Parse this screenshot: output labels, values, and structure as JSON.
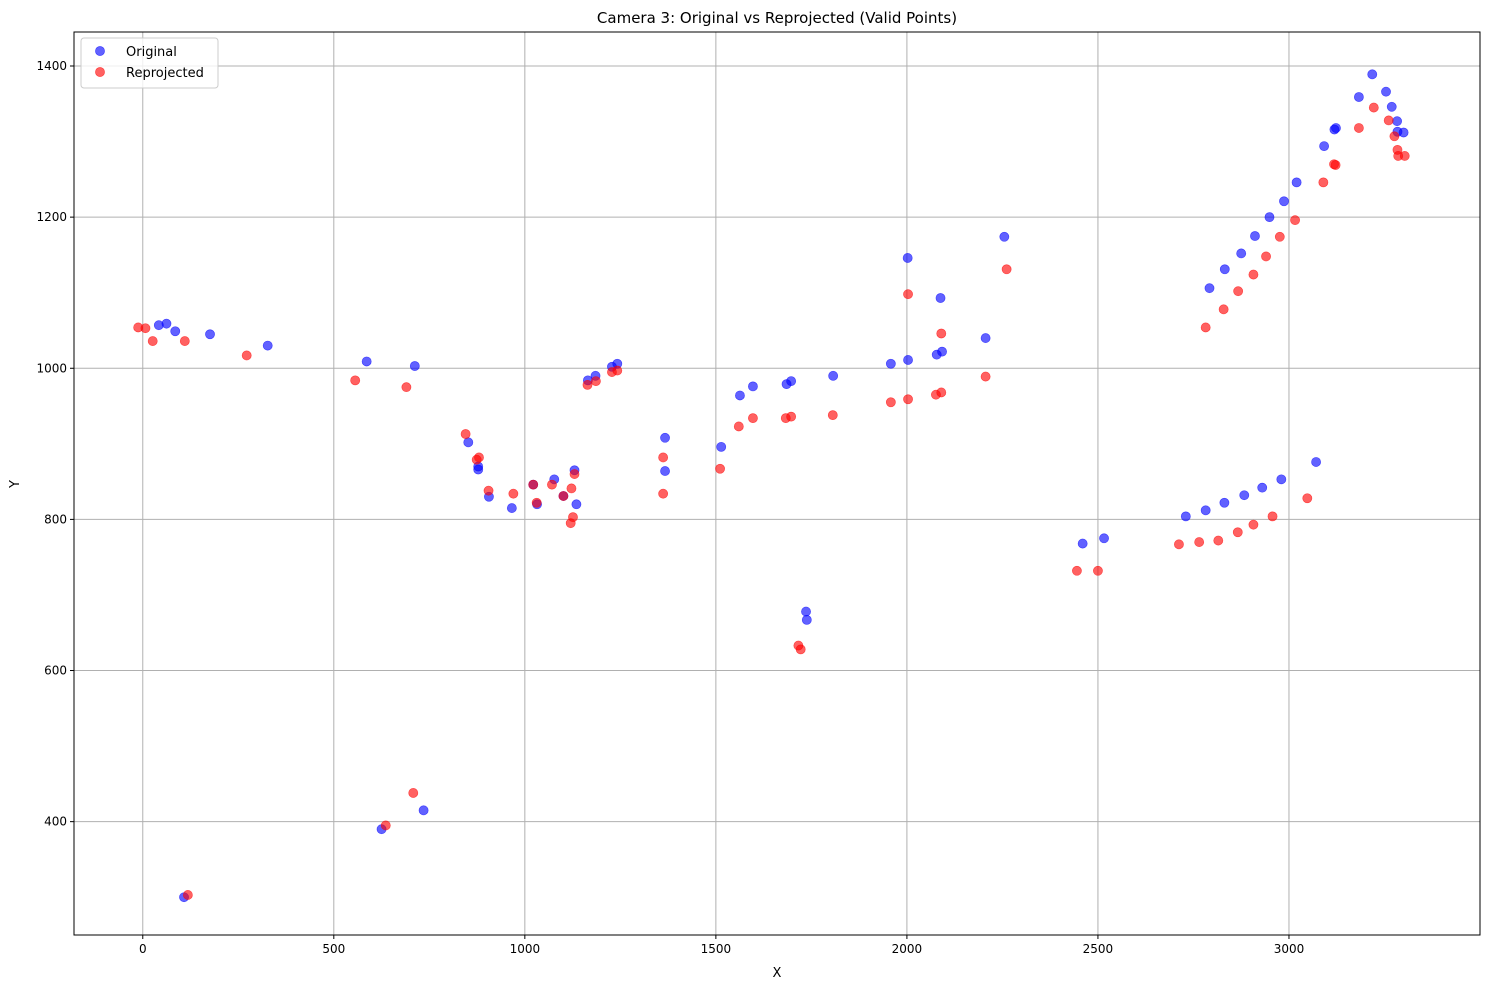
{
  "chart_data": {
    "type": "scatter",
    "title": "Camera 3: Original vs Reprojected (Valid Points)",
    "xlabel": "X",
    "ylabel": "Y",
    "xlim": [
      -180,
      3500
    ],
    "ylim": [
      250,
      1445
    ],
    "xticks": [
      0,
      500,
      1000,
      1500,
      2000,
      2500,
      3000
    ],
    "yticks": [
      400,
      600,
      800,
      1000,
      1200,
      1400
    ],
    "grid": true,
    "legend_position": "top-left",
    "series": [
      {
        "name": "Original",
        "color": "#0000ff",
        "points": [
          [
            42,
            1057
          ],
          [
            62,
            1059
          ],
          [
            85,
            1049
          ],
          [
            176,
            1045
          ],
          [
            327,
            1030
          ],
          [
            586,
            1009
          ],
          [
            712,
            1003
          ],
          [
            852,
            902
          ],
          [
            878,
            870
          ],
          [
            878,
            866
          ],
          [
            906,
            830
          ],
          [
            966,
            815
          ],
          [
            1022,
            846
          ],
          [
            1032,
            820
          ],
          [
            1077,
            853
          ],
          [
            1101,
            831
          ],
          [
            1130,
            865
          ],
          [
            1135,
            820
          ],
          [
            1165,
            984
          ],
          [
            1185,
            990
          ],
          [
            1228,
            1002
          ],
          [
            1242,
            1006
          ],
          [
            1367,
            908
          ],
          [
            1367,
            864
          ],
          [
            1514,
            896
          ],
          [
            1563,
            964
          ],
          [
            1597,
            976
          ],
          [
            1685,
            979
          ],
          [
            1697,
            983
          ],
          [
            1807,
            990
          ],
          [
            1958,
            1006
          ],
          [
            2002,
            1146
          ],
          [
            2003,
            1011
          ],
          [
            2078,
            1018
          ],
          [
            2088,
            1093
          ],
          [
            2092,
            1022
          ],
          [
            2206,
            1040
          ],
          [
            2255,
            1174
          ],
          [
            2460,
            768
          ],
          [
            2516,
            775
          ],
          [
            2730,
            804
          ],
          [
            2782,
            812
          ],
          [
            2792,
            1106
          ],
          [
            2831,
            822
          ],
          [
            2832,
            1131
          ],
          [
            2875,
            1152
          ],
          [
            2883,
            832
          ],
          [
            2911,
            1175
          ],
          [
            2930,
            842
          ],
          [
            2949,
            1200
          ],
          [
            2980,
            853
          ],
          [
            2987,
            1221
          ],
          [
            3020,
            1246
          ],
          [
            3071,
            876
          ],
          [
            3092,
            1294
          ],
          [
            3119,
            1316
          ],
          [
            3123,
            1318
          ],
          [
            3183,
            1359
          ],
          [
            3218,
            1389
          ],
          [
            3254,
            1366
          ],
          [
            3269,
            1346
          ],
          [
            3283,
            1327
          ],
          [
            3284,
            1313
          ],
          [
            3300,
            1312
          ],
          [
            735,
            415
          ],
          [
            625,
            390
          ],
          [
            108,
            300
          ],
          [
            1736,
            678
          ],
          [
            1738,
            667
          ]
        ]
      },
      {
        "name": "Reprojected",
        "color": "#ff0000",
        "points": [
          [
            -12,
            1054
          ],
          [
            7,
            1053
          ],
          [
            26,
            1036
          ],
          [
            110,
            1036
          ],
          [
            272,
            1017
          ],
          [
            556,
            984
          ],
          [
            690,
            975
          ],
          [
            845,
            913
          ],
          [
            874,
            879
          ],
          [
            880,
            882
          ],
          [
            905,
            838
          ],
          [
            970,
            834
          ],
          [
            1022,
            846
          ],
          [
            1031,
            822
          ],
          [
            1071,
            846
          ],
          [
            1101,
            831
          ],
          [
            1122,
            841
          ],
          [
            1130,
            860
          ],
          [
            1120,
            795
          ],
          [
            1126,
            803
          ],
          [
            1164,
            978
          ],
          [
            1186,
            983
          ],
          [
            1228,
            995
          ],
          [
            1242,
            997
          ],
          [
            1362,
            882
          ],
          [
            1362,
            834
          ],
          [
            1511,
            867
          ],
          [
            1560,
            923
          ],
          [
            1597,
            934
          ],
          [
            1683,
            934
          ],
          [
            1697,
            936
          ],
          [
            1806,
            938
          ],
          [
            1958,
            955
          ],
          [
            2003,
            1098
          ],
          [
            2003,
            959
          ],
          [
            2076,
            965
          ],
          [
            2090,
            1046
          ],
          [
            2090,
            968
          ],
          [
            2206,
            989
          ],
          [
            2261,
            1131
          ],
          [
            2445,
            732
          ],
          [
            2500,
            732
          ],
          [
            2712,
            767
          ],
          [
            2765,
            770
          ],
          [
            2782,
            1054
          ],
          [
            2815,
            772
          ],
          [
            2829,
            1078
          ],
          [
            2866,
            783
          ],
          [
            2867,
            1102
          ],
          [
            2907,
            793
          ],
          [
            2907,
            1124
          ],
          [
            2940,
            1148
          ],
          [
            2957,
            804
          ],
          [
            2976,
            1174
          ],
          [
            3016,
            1196
          ],
          [
            3048,
            828
          ],
          [
            3090,
            1246
          ],
          [
            3118,
            1270
          ],
          [
            3122,
            1269
          ],
          [
            3183,
            1318
          ],
          [
            3222,
            1345
          ],
          [
            3261,
            1328
          ],
          [
            3276,
            1307
          ],
          [
            3284,
            1289
          ],
          [
            3286,
            1281
          ],
          [
            3303,
            1281
          ],
          [
            708,
            438
          ],
          [
            636,
            395
          ],
          [
            118,
            303
          ],
          [
            1716,
            633
          ],
          [
            1722,
            628
          ]
        ]
      }
    ]
  }
}
